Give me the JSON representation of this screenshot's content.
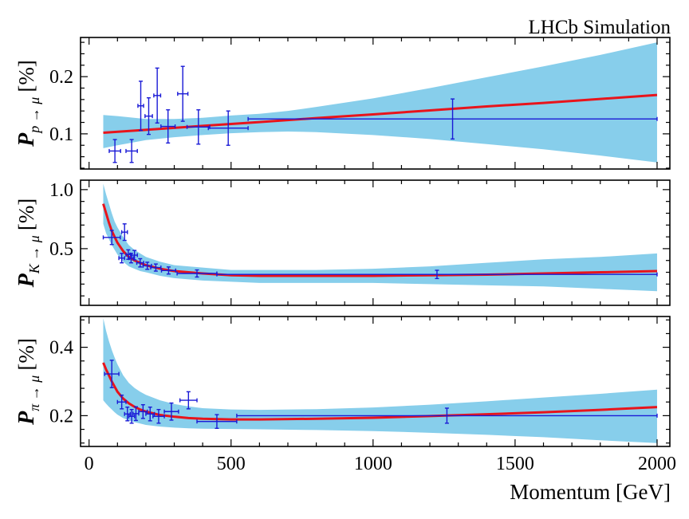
{
  "chart_data": {
    "type": "scatter",
    "title": "LHCb Simulation",
    "xlabel": "Momentum [GeV]",
    "xlim": [
      -30,
      2045
    ],
    "x_ticks": [
      0,
      500,
      1000,
      1500,
      2000
    ],
    "x_tick_labels": [
      "0",
      "500",
      "1000",
      "1500",
      "2000"
    ],
    "panels": [
      {
        "id": "p",
        "ylabel_main": "P",
        "ylabel_sub": "p → μ",
        "ylabel_unit": "[%]",
        "ylim": [
          0.0385,
          0.2685
        ],
        "y_ticks": [
          0.1,
          0.2
        ],
        "y_tick_labels": [
          "0.1",
          "0.2"
        ],
        "fit": {
          "x": [
            50,
            200,
            400,
            600,
            800,
            1000,
            1200,
            1400,
            1600,
            1800,
            2000
          ],
          "y": [
            0.102,
            0.107,
            0.114,
            0.1205,
            0.1275,
            0.134,
            0.141,
            0.148,
            0.154,
            0.161,
            0.168
          ]
        },
        "band": {
          "x": [
            50,
            100,
            200,
            300,
            400,
            500,
            600,
            700,
            800,
            1000,
            1200,
            1400,
            1600,
            1800,
            2000
          ],
          "lo": [
            0.075,
            0.08,
            0.089,
            0.094,
            0.098,
            0.101,
            0.103,
            0.104,
            0.103,
            0.098,
            0.091,
            0.082,
            0.073,
            0.062,
            0.05
          ],
          "hi": [
            0.133,
            0.131,
            0.126,
            0.126,
            0.128,
            0.132,
            0.135,
            0.14,
            0.147,
            0.162,
            0.18,
            0.199,
            0.218,
            0.238,
            0.26
          ]
        },
        "points": [
          {
            "x": 91,
            "y": 0.07,
            "xerr": 20,
            "yerr": 0.02
          },
          {
            "x": 150,
            "y": 0.07,
            "xerr": 20,
            "yerr": 0.02
          },
          {
            "x": 182,
            "y": 0.149,
            "xerr": 10,
            "yerr": 0.043
          },
          {
            "x": 210,
            "y": 0.131,
            "xerr": 13,
            "yerr": 0.032
          },
          {
            "x": 240,
            "y": 0.167,
            "xerr": 12,
            "yerr": 0.048
          },
          {
            "x": 278,
            "y": 0.113,
            "xerr": 25,
            "yerr": 0.029
          },
          {
            "x": 330,
            "y": 0.17,
            "xerr": 18,
            "yerr": 0.048
          },
          {
            "x": 385,
            "y": 0.112,
            "xerr": 40,
            "yerr": 0.03
          },
          {
            "x": 490,
            "y": 0.11,
            "xerr": 70,
            "yerr": 0.03
          },
          {
            "x": 1280,
            "y": 0.126,
            "xerr": 720,
            "yerr": 0.035
          }
        ]
      },
      {
        "id": "K",
        "ylabel_main": "P",
        "ylabel_sub": "K → μ",
        "ylabel_unit": "[%]",
        "ylim": [
          0.02,
          1.08
        ],
        "y_ticks": [
          0.5,
          1.0
        ],
        "y_tick_labels": [
          "0.5",
          "1.0"
        ],
        "fit": {
          "x": [
            50,
            60,
            70,
            80,
            90,
            100,
            120,
            140,
            160,
            180,
            200,
            250,
            300,
            350,
            400,
            500,
            600,
            700,
            800,
            1000,
            1200,
            1400,
            1600,
            1800,
            2000
          ],
          "y": [
            0.88,
            0.8,
            0.72,
            0.65,
            0.6,
            0.55,
            0.48,
            0.43,
            0.4,
            0.38,
            0.36,
            0.33,
            0.31,
            0.3,
            0.29,
            0.275,
            0.27,
            0.27,
            0.27,
            0.27,
            0.275,
            0.28,
            0.29,
            0.3,
            0.31
          ]
        },
        "band": {
          "x": [
            50,
            60,
            70,
            80,
            90,
            100,
            120,
            140,
            160,
            180,
            200,
            250,
            300,
            350,
            400,
            500,
            600,
            700,
            800,
            1000,
            1200,
            1400,
            1600,
            1800,
            2000
          ],
          "lo": [
            0.71,
            0.63,
            0.58,
            0.53,
            0.49,
            0.45,
            0.39,
            0.35,
            0.33,
            0.31,
            0.3,
            0.27,
            0.25,
            0.24,
            0.23,
            0.22,
            0.21,
            0.21,
            0.21,
            0.21,
            0.2,
            0.19,
            0.18,
            0.16,
            0.14
          ],
          "hi": [
            1.05,
            0.96,
            0.88,
            0.8,
            0.73,
            0.68,
            0.6,
            0.53,
            0.49,
            0.46,
            0.43,
            0.39,
            0.36,
            0.35,
            0.34,
            0.32,
            0.32,
            0.32,
            0.32,
            0.33,
            0.35,
            0.38,
            0.41,
            0.43,
            0.46
          ]
        },
        "points": [
          {
            "x": 80,
            "y": 0.595,
            "xerr": 30,
            "yerr": 0.06
          },
          {
            "x": 115,
            "y": 0.42,
            "xerr": 10,
            "yerr": 0.04
          },
          {
            "x": 125,
            "y": 0.64,
            "xerr": 10,
            "yerr": 0.07
          },
          {
            "x": 138,
            "y": 0.45,
            "xerr": 8,
            "yerr": 0.04
          },
          {
            "x": 148,
            "y": 0.42,
            "xerr": 8,
            "yerr": 0.04
          },
          {
            "x": 160,
            "y": 0.445,
            "xerr": 10,
            "yerr": 0.04
          },
          {
            "x": 180,
            "y": 0.38,
            "xerr": 12,
            "yerr": 0.035
          },
          {
            "x": 205,
            "y": 0.355,
            "xerr": 15,
            "yerr": 0.03
          },
          {
            "x": 235,
            "y": 0.34,
            "xerr": 18,
            "yerr": 0.03
          },
          {
            "x": 280,
            "y": 0.315,
            "xerr": 25,
            "yerr": 0.03
          },
          {
            "x": 380,
            "y": 0.29,
            "xerr": 70,
            "yerr": 0.03
          },
          {
            "x": 1225,
            "y": 0.282,
            "xerr": 775,
            "yerr": 0.035
          }
        ]
      },
      {
        "id": "pi",
        "ylabel_main": "P",
        "ylabel_sub": "π → μ",
        "ylabel_unit": "[%]",
        "ylim": [
          0.11,
          0.49
        ],
        "y_ticks": [
          0.2,
          0.4
        ],
        "y_tick_labels": [
          "0.2",
          "0.4"
        ],
        "fit": {
          "x": [
            50,
            60,
            70,
            80,
            90,
            100,
            120,
            140,
            160,
            180,
            200,
            250,
            300,
            350,
            400,
            500,
            600,
            800,
            1000,
            1200,
            1400,
            1600,
            1800,
            2000
          ],
          "y": [
            0.355,
            0.335,
            0.318,
            0.3,
            0.285,
            0.27,
            0.25,
            0.236,
            0.226,
            0.218,
            0.212,
            0.202,
            0.197,
            0.193,
            0.191,
            0.189,
            0.189,
            0.191,
            0.194,
            0.199,
            0.204,
            0.21,
            0.217,
            0.225
          ]
        },
        "band": {
          "x": [
            50,
            60,
            70,
            80,
            90,
            100,
            120,
            140,
            160,
            180,
            200,
            250,
            300,
            350,
            400,
            500,
            600,
            800,
            1000,
            1200,
            1400,
            1600,
            1800,
            2000
          ],
          "lo": [
            0.245,
            0.235,
            0.226,
            0.218,
            0.21,
            0.203,
            0.193,
            0.186,
            0.181,
            0.177,
            0.173,
            0.168,
            0.165,
            0.163,
            0.162,
            0.161,
            0.16,
            0.158,
            0.155,
            0.15,
            0.144,
            0.137,
            0.128,
            0.12
          ]
        },
        "band_hi": [
          0.485,
          0.448,
          0.418,
          0.392,
          0.37,
          0.35,
          0.318,
          0.296,
          0.281,
          0.27,
          0.261,
          0.245,
          0.234,
          0.227,
          0.222,
          0.218,
          0.217,
          0.219,
          0.224,
          0.232,
          0.242,
          0.253,
          0.264,
          0.276
        ],
        "points": [
          {
            "x": 80,
            "y": 0.322,
            "xerr": 25,
            "yerr": 0.04
          },
          {
            "x": 115,
            "y": 0.24,
            "xerr": 15,
            "yerr": 0.02
          },
          {
            "x": 135,
            "y": 0.205,
            "xerr": 10,
            "yerr": 0.02
          },
          {
            "x": 150,
            "y": 0.198,
            "xerr": 10,
            "yerr": 0.02
          },
          {
            "x": 165,
            "y": 0.206,
            "xerr": 10,
            "yerr": 0.02
          },
          {
            "x": 190,
            "y": 0.212,
            "xerr": 15,
            "yerr": 0.02
          },
          {
            "x": 215,
            "y": 0.205,
            "xerr": 15,
            "yerr": 0.02
          },
          {
            "x": 245,
            "y": 0.198,
            "xerr": 20,
            "yerr": 0.02
          },
          {
            "x": 290,
            "y": 0.212,
            "xerr": 25,
            "yerr": 0.025
          },
          {
            "x": 350,
            "y": 0.245,
            "xerr": 30,
            "yerr": 0.025
          },
          {
            "x": 450,
            "y": 0.183,
            "xerr": 70,
            "yerr": 0.02
          },
          {
            "x": 1260,
            "y": 0.2,
            "xerr": 740,
            "yerr": 0.022
          }
        ]
      }
    ]
  }
}
